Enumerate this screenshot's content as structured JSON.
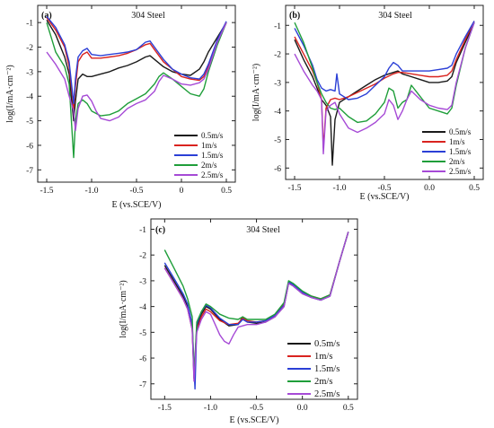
{
  "chart_data": [
    {
      "type": "line",
      "panel_label": "(a)",
      "title": "304 Steel",
      "xlabel": "E  (vs.SCE/V)",
      "ylabel": "log(I/mA·cm⁻²)",
      "xlim": [
        -1.6,
        0.6
      ],
      "ylim": [
        -7.5,
        -0.3
      ],
      "xticks": [
        -1.5,
        -1.0,
        -0.5,
        0.0,
        0.5
      ],
      "xtick_labels": [
        "-1.5",
        "-1.0",
        "-0.5",
        "0",
        "0.5"
      ],
      "yticks": [
        -7,
        -6,
        -5,
        -4,
        -3,
        -2,
        -1
      ],
      "ytick_labels": [
        "-7",
        "-6",
        "-5",
        "-4",
        "-3",
        "-2",
        "-1"
      ],
      "legend_position": "bottom-right",
      "series": [
        {
          "name": "0.5m/s",
          "color": "#1a1a1a",
          "x": [
            -1.5,
            -1.4,
            -1.3,
            -1.25,
            -1.2,
            -1.18,
            -1.15,
            -1.1,
            -1.05,
            -1.0,
            -0.9,
            -0.8,
            -0.7,
            -0.6,
            -0.5,
            -0.4,
            -0.35,
            -0.3,
            -0.2,
            -0.1,
            0.0,
            0.1,
            0.2,
            0.25,
            0.3,
            0.4,
            0.5
          ],
          "y": [
            -0.9,
            -1.5,
            -2.4,
            -3.1,
            -5.0,
            -4.2,
            -3.3,
            -3.1,
            -3.2,
            -3.2,
            -3.1,
            -3.0,
            -2.85,
            -2.75,
            -2.6,
            -2.4,
            -2.35,
            -2.5,
            -2.8,
            -3.0,
            -3.1,
            -3.15,
            -2.9,
            -2.6,
            -2.2,
            -1.6,
            -1.0
          ]
        },
        {
          "name": "1m/s",
          "color": "#d9231f",
          "x": [
            -1.5,
            -1.4,
            -1.3,
            -1.25,
            -1.2,
            -1.18,
            -1.15,
            -1.1,
            -1.05,
            -1.0,
            -0.9,
            -0.8,
            -0.7,
            -0.6,
            -0.5,
            -0.4,
            -0.35,
            -0.3,
            -0.2,
            -0.1,
            0.0,
            0.1,
            0.2,
            0.25,
            0.3,
            0.4,
            0.5
          ],
          "y": [
            -0.8,
            -1.3,
            -2.0,
            -2.8,
            -4.5,
            -3.6,
            -2.6,
            -2.3,
            -2.2,
            -2.45,
            -2.45,
            -2.4,
            -2.35,
            -2.25,
            -2.1,
            -1.9,
            -1.85,
            -2.1,
            -2.6,
            -2.9,
            -3.2,
            -3.3,
            -3.35,
            -3.2,
            -2.8,
            -1.8,
            -1.0
          ]
        },
        {
          "name": "1.5m/s",
          "color": "#2b3fd6",
          "x": [
            -1.5,
            -1.4,
            -1.3,
            -1.25,
            -1.2,
            -1.18,
            -1.15,
            -1.1,
            -1.05,
            -1.0,
            -0.9,
            -0.8,
            -0.7,
            -0.6,
            -0.5,
            -0.4,
            -0.35,
            -0.3,
            -0.2,
            -0.1,
            0.0,
            0.1,
            0.2,
            0.25,
            0.3,
            0.4,
            0.5
          ],
          "y": [
            -0.75,
            -1.2,
            -1.9,
            -2.6,
            -4.3,
            -3.3,
            -2.4,
            -2.15,
            -2.05,
            -2.3,
            -2.35,
            -2.3,
            -2.25,
            -2.2,
            -2.1,
            -1.8,
            -1.75,
            -2.0,
            -2.5,
            -2.9,
            -3.1,
            -3.25,
            -3.3,
            -3.1,
            -2.7,
            -1.7,
            -0.95
          ]
        },
        {
          "name": "2m/s",
          "color": "#1f9e3a",
          "x": [
            -1.5,
            -1.45,
            -1.4,
            -1.3,
            -1.25,
            -1.2,
            -1.18,
            -1.15,
            -1.1,
            -1.05,
            -1.0,
            -0.9,
            -0.8,
            -0.7,
            -0.6,
            -0.5,
            -0.4,
            -0.3,
            -0.25,
            -0.2,
            -0.1,
            0.0,
            0.1,
            0.2,
            0.25,
            0.3,
            0.4,
            0.5
          ],
          "y": [
            -1.0,
            -1.6,
            -2.2,
            -2.8,
            -3.5,
            -6.5,
            -5.0,
            -4.3,
            -4.15,
            -4.3,
            -4.6,
            -4.8,
            -4.75,
            -4.6,
            -4.3,
            -4.1,
            -3.9,
            -3.5,
            -3.2,
            -3.05,
            -3.3,
            -3.6,
            -3.9,
            -4.0,
            -3.7,
            -3.0,
            -1.9,
            -1.0
          ]
        },
        {
          "name": "2.5m/s",
          "color": "#a64ad6",
          "x": [
            -1.5,
            -1.4,
            -1.3,
            -1.25,
            -1.2,
            -1.18,
            -1.15,
            -1.1,
            -1.05,
            -1.0,
            -0.95,
            -0.9,
            -0.8,
            -0.7,
            -0.6,
            -0.5,
            -0.4,
            -0.3,
            -0.25,
            -0.2,
            -0.1,
            0.0,
            0.1,
            0.2,
            0.25,
            0.3,
            0.4,
            0.5
          ],
          "y": [
            -2.2,
            -2.7,
            -3.3,
            -4.0,
            -4.6,
            -5.4,
            -4.5,
            -4.0,
            -3.95,
            -4.2,
            -4.6,
            -4.9,
            -5.0,
            -4.85,
            -4.5,
            -4.3,
            -4.15,
            -3.8,
            -3.4,
            -3.15,
            -3.3,
            -3.5,
            -3.55,
            -3.45,
            -3.3,
            -2.9,
            -1.8,
            -1.0
          ]
        }
      ]
    },
    {
      "type": "line",
      "panel_label": "(b)",
      "title": "304 Steel",
      "xlabel": "E  (vs.SCE/V)",
      "ylabel": "log(I/mA·cm⁻²)",
      "xlim": [
        -1.6,
        0.6
      ],
      "ylim": [
        -6.4,
        -0.3
      ],
      "xticks": [
        -1.5,
        -1.0,
        -0.5,
        0.0,
        0.5
      ],
      "xtick_labels": [
        "-1.5",
        "-1.0",
        "-0.5",
        "0.0",
        "0.5"
      ],
      "yticks": [
        -6,
        -5,
        -4,
        -3,
        -2,
        -1
      ],
      "ytick_labels": [
        "-6",
        "-5",
        "-4",
        "-3",
        "-2",
        "-1"
      ],
      "legend_position": "bottom-right",
      "series": [
        {
          "name": "0.5m/s",
          "color": "#1a1a1a",
          "x": [
            -1.5,
            -1.4,
            -1.3,
            -1.25,
            -1.2,
            -1.15,
            -1.1,
            -1.08,
            -1.05,
            -1.0,
            -0.9,
            -0.8,
            -0.7,
            -0.6,
            -0.5,
            -0.4,
            -0.35,
            -0.3,
            -0.2,
            -0.1,
            0.0,
            0.1,
            0.2,
            0.25,
            0.3,
            0.4,
            0.5
          ],
          "y": [
            -1.5,
            -2.2,
            -2.8,
            -3.2,
            -3.6,
            -3.8,
            -4.2,
            -5.9,
            -4.3,
            -3.7,
            -3.5,
            -3.3,
            -3.1,
            -2.9,
            -2.75,
            -2.65,
            -2.6,
            -2.7,
            -2.8,
            -2.9,
            -3.0,
            -3.0,
            -2.95,
            -2.8,
            -2.3,
            -1.6,
            -0.9
          ]
        },
        {
          "name": "1m/s",
          "color": "#d9231f",
          "x": [
            -1.5,
            -1.4,
            -1.3,
            -1.25,
            -1.2,
            -1.18,
            -1.15,
            -1.1,
            -1.05,
            -1.0,
            -0.9,
            -0.8,
            -0.7,
            -0.6,
            -0.5,
            -0.4,
            -0.35,
            -0.3,
            -0.2,
            -0.1,
            0.0,
            0.1,
            0.2,
            0.25,
            0.3,
            0.4,
            0.5
          ],
          "y": [
            -1.4,
            -2.0,
            -2.6,
            -3.0,
            -3.6,
            -5.3,
            -3.9,
            -3.6,
            -3.55,
            -3.6,
            -3.5,
            -3.35,
            -3.2,
            -3.05,
            -2.85,
            -2.7,
            -2.65,
            -2.65,
            -2.7,
            -2.75,
            -2.8,
            -2.8,
            -2.75,
            -2.6,
            -2.2,
            -1.5,
            -0.85
          ]
        },
        {
          "name": "1.5m/s",
          "color": "#2b3fd6",
          "x": [
            -1.5,
            -1.4,
            -1.3,
            -1.25,
            -1.2,
            -1.15,
            -1.1,
            -1.05,
            -1.03,
            -1.0,
            -0.9,
            -0.8,
            -0.7,
            -0.6,
            -0.5,
            -0.45,
            -0.4,
            -0.35,
            -0.3,
            -0.2,
            -0.1,
            0.0,
            0.1,
            0.2,
            0.25,
            0.3,
            0.4,
            0.5
          ],
          "y": [
            -1.1,
            -1.7,
            -2.4,
            -2.9,
            -3.2,
            -3.3,
            -3.25,
            -3.3,
            -2.7,
            -3.4,
            -3.6,
            -3.55,
            -3.4,
            -3.1,
            -2.8,
            -2.5,
            -2.3,
            -2.4,
            -2.6,
            -2.6,
            -2.6,
            -2.6,
            -2.55,
            -2.5,
            -2.4,
            -2.0,
            -1.4,
            -0.85
          ]
        },
        {
          "name": "2m/s",
          "color": "#1f9e3a",
          "x": [
            -1.5,
            -1.4,
            -1.3,
            -1.25,
            -1.2,
            -1.15,
            -1.1,
            -1.05,
            -1.0,
            -0.9,
            -0.8,
            -0.7,
            -0.6,
            -0.5,
            -0.45,
            -0.4,
            -0.35,
            -0.3,
            -0.25,
            -0.2,
            -0.1,
            0.0,
            0.1,
            0.2,
            0.25,
            0.3,
            0.4,
            0.5
          ],
          "y": [
            -0.9,
            -1.6,
            -2.5,
            -3.0,
            -3.4,
            -3.7,
            -3.9,
            -3.95,
            -3.9,
            -4.2,
            -4.4,
            -4.35,
            -4.1,
            -3.7,
            -3.2,
            -3.3,
            -3.9,
            -3.7,
            -3.6,
            -3.1,
            -3.5,
            -3.9,
            -4.0,
            -4.1,
            -3.9,
            -3.1,
            -1.8,
            -0.9
          ]
        },
        {
          "name": "2.5m/s",
          "color": "#a64ad6",
          "x": [
            -1.5,
            -1.4,
            -1.3,
            -1.25,
            -1.2,
            -1.18,
            -1.15,
            -1.1,
            -1.05,
            -1.0,
            -0.9,
            -0.8,
            -0.7,
            -0.6,
            -0.5,
            -0.45,
            -0.4,
            -0.35,
            -0.3,
            -0.25,
            -0.2,
            -0.1,
            0.0,
            0.1,
            0.2,
            0.25,
            0.3,
            0.4,
            0.5
          ],
          "y": [
            -2.0,
            -2.6,
            -3.1,
            -3.3,
            -3.6,
            -5.5,
            -4.0,
            -3.8,
            -3.7,
            -4.1,
            -4.6,
            -4.75,
            -4.6,
            -4.4,
            -4.1,
            -3.6,
            -3.8,
            -4.3,
            -4.0,
            -3.6,
            -3.3,
            -3.6,
            -3.8,
            -3.9,
            -3.95,
            -3.8,
            -3.0,
            -1.8,
            -0.9
          ]
        }
      ]
    },
    {
      "type": "line",
      "panel_label": "(c)",
      "title": "304 Steel",
      "xlabel": "E  (vs.SCE/V)",
      "ylabel": "log(I/mA·cm⁻²)",
      "xlim": [
        -1.65,
        0.6
      ],
      "ylim": [
        -7.6,
        -0.6
      ],
      "xticks": [
        -1.5,
        -1.0,
        -0.5,
        0.0,
        0.5
      ],
      "xtick_labels": [
        "-1.5",
        "-1.0",
        "-0.5",
        "0.0",
        "0.5"
      ],
      "yticks": [
        -7,
        -6,
        -5,
        -4,
        -3,
        -2,
        -1
      ],
      "ytick_labels": [
        "-7",
        "-6",
        "-5",
        "-4",
        "-3",
        "-2",
        "-1"
      ],
      "legend_position": "bottom-right",
      "series": [
        {
          "name": "0.5m/s",
          "color": "#1a1a1a",
          "x": [
            -1.5,
            -1.4,
            -1.3,
            -1.25,
            -1.2,
            -1.18,
            -1.15,
            -1.1,
            -1.05,
            -1.0,
            -0.9,
            -0.8,
            -0.7,
            -0.65,
            -0.6,
            -0.5,
            -0.4,
            -0.3,
            -0.2,
            -0.15,
            -0.1,
            0.0,
            0.1,
            0.2,
            0.3,
            0.4,
            0.5
          ],
          "y": [
            -2.4,
            -3.0,
            -3.6,
            -4.0,
            -4.8,
            -6.8,
            -4.8,
            -4.3,
            -4.0,
            -4.1,
            -4.5,
            -4.75,
            -4.7,
            -4.4,
            -4.6,
            -4.65,
            -4.6,
            -4.4,
            -4.0,
            -3.1,
            -3.2,
            -3.5,
            -3.65,
            -3.75,
            -3.6,
            -2.3,
            -1.1
          ]
        },
        {
          "name": "1m/s",
          "color": "#d9231f",
          "x": [
            -1.5,
            -1.4,
            -1.3,
            -1.25,
            -1.2,
            -1.18,
            -1.15,
            -1.1,
            -1.05,
            -1.0,
            -0.9,
            -0.8,
            -0.7,
            -0.65,
            -0.6,
            -0.5,
            -0.4,
            -0.3,
            -0.2,
            -0.15,
            -0.1,
            0.0,
            0.1,
            0.2,
            0.3,
            0.4,
            0.5
          ],
          "y": [
            -2.5,
            -3.1,
            -3.7,
            -4.1,
            -4.9,
            -6.6,
            -4.9,
            -4.4,
            -4.1,
            -4.2,
            -4.55,
            -4.7,
            -4.65,
            -4.45,
            -4.55,
            -4.6,
            -4.55,
            -4.35,
            -3.9,
            -3.05,
            -3.15,
            -3.45,
            -3.6,
            -3.7,
            -3.55,
            -2.3,
            -1.1
          ]
        },
        {
          "name": "1.5m/s",
          "color": "#2b3fd6",
          "x": [
            -1.5,
            -1.4,
            -1.3,
            -1.25,
            -1.2,
            -1.17,
            -1.15,
            -1.1,
            -1.05,
            -1.0,
            -0.9,
            -0.8,
            -0.7,
            -0.65,
            -0.6,
            -0.5,
            -0.4,
            -0.3,
            -0.2,
            -0.15,
            -0.1,
            0.0,
            0.1,
            0.2,
            0.3,
            0.4,
            0.5
          ],
          "y": [
            -2.3,
            -2.9,
            -3.5,
            -3.9,
            -4.7,
            -7.2,
            -4.7,
            -4.2,
            -3.95,
            -4.05,
            -4.45,
            -4.7,
            -4.7,
            -4.5,
            -4.6,
            -4.6,
            -4.55,
            -4.35,
            -3.95,
            -3.05,
            -3.15,
            -3.45,
            -3.65,
            -3.75,
            -3.6,
            -2.3,
            -1.1
          ]
        },
        {
          "name": "2m/s",
          "color": "#1f9e3a",
          "x": [
            -1.5,
            -1.4,
            -1.3,
            -1.25,
            -1.2,
            -1.18,
            -1.15,
            -1.1,
            -1.05,
            -1.0,
            -0.9,
            -0.8,
            -0.7,
            -0.65,
            -0.6,
            -0.5,
            -0.4,
            -0.3,
            -0.2,
            -0.15,
            -0.1,
            0.0,
            0.1,
            0.2,
            0.3,
            0.4,
            0.5
          ],
          "y": [
            -1.8,
            -2.5,
            -3.2,
            -3.7,
            -4.4,
            -6.7,
            -4.6,
            -4.2,
            -3.9,
            -4.0,
            -4.3,
            -4.45,
            -4.5,
            -4.4,
            -4.5,
            -4.5,
            -4.5,
            -4.3,
            -3.85,
            -3.0,
            -3.1,
            -3.4,
            -3.6,
            -3.7,
            -3.55,
            -2.3,
            -1.1
          ]
        },
        {
          "name": "2.5m/s",
          "color": "#a64ad6",
          "x": [
            -1.5,
            -1.4,
            -1.3,
            -1.25,
            -1.2,
            -1.18,
            -1.15,
            -1.1,
            -1.05,
            -1.0,
            -0.95,
            -0.9,
            -0.85,
            -0.8,
            -0.75,
            -0.7,
            -0.6,
            -0.5,
            -0.4,
            -0.3,
            -0.2,
            -0.15,
            -0.1,
            0.0,
            0.1,
            0.2,
            0.3,
            0.4,
            0.5
          ],
          "y": [
            -2.5,
            -3.1,
            -3.7,
            -4.1,
            -4.9,
            -6.9,
            -5.0,
            -4.5,
            -4.2,
            -4.3,
            -4.7,
            -5.1,
            -5.35,
            -5.45,
            -5.1,
            -4.8,
            -4.7,
            -4.7,
            -4.6,
            -4.4,
            -4.0,
            -3.1,
            -3.2,
            -3.5,
            -3.65,
            -3.75,
            -3.6,
            -2.3,
            -1.1
          ]
        }
      ]
    }
  ]
}
